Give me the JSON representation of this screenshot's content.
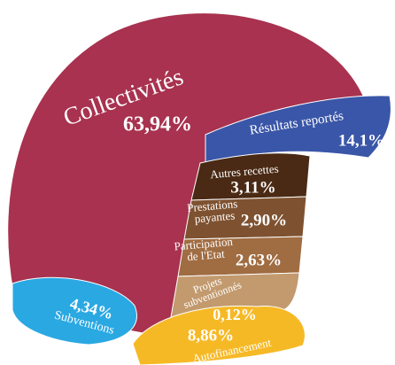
{
  "chart_data": {
    "type": "helmet",
    "categories": [
      "Collectivités",
      "Résultats reportés",
      "Autres recettes",
      "Prestations payantes",
      "Participation de l'Etat",
      "Projets subventionnés",
      "Autofinancement",
      "Subventions"
    ],
    "values": [
      63.94,
      14.1,
      3.11,
      2.9,
      2.63,
      0.12,
      8.86,
      4.34
    ],
    "value_labels": [
      "63,94%",
      "14,1%",
      "3,11%",
      "2,90%",
      "2,63%",
      "0,12%",
      "8,86%",
      "4,34%"
    ],
    "colors": [
      "#a8324f",
      "#3a56a8",
      "#4a2a14",
      "#7e5230",
      "#a06c42",
      "#c29a6e",
      "#f6b926",
      "#2aa8e2"
    ]
  }
}
